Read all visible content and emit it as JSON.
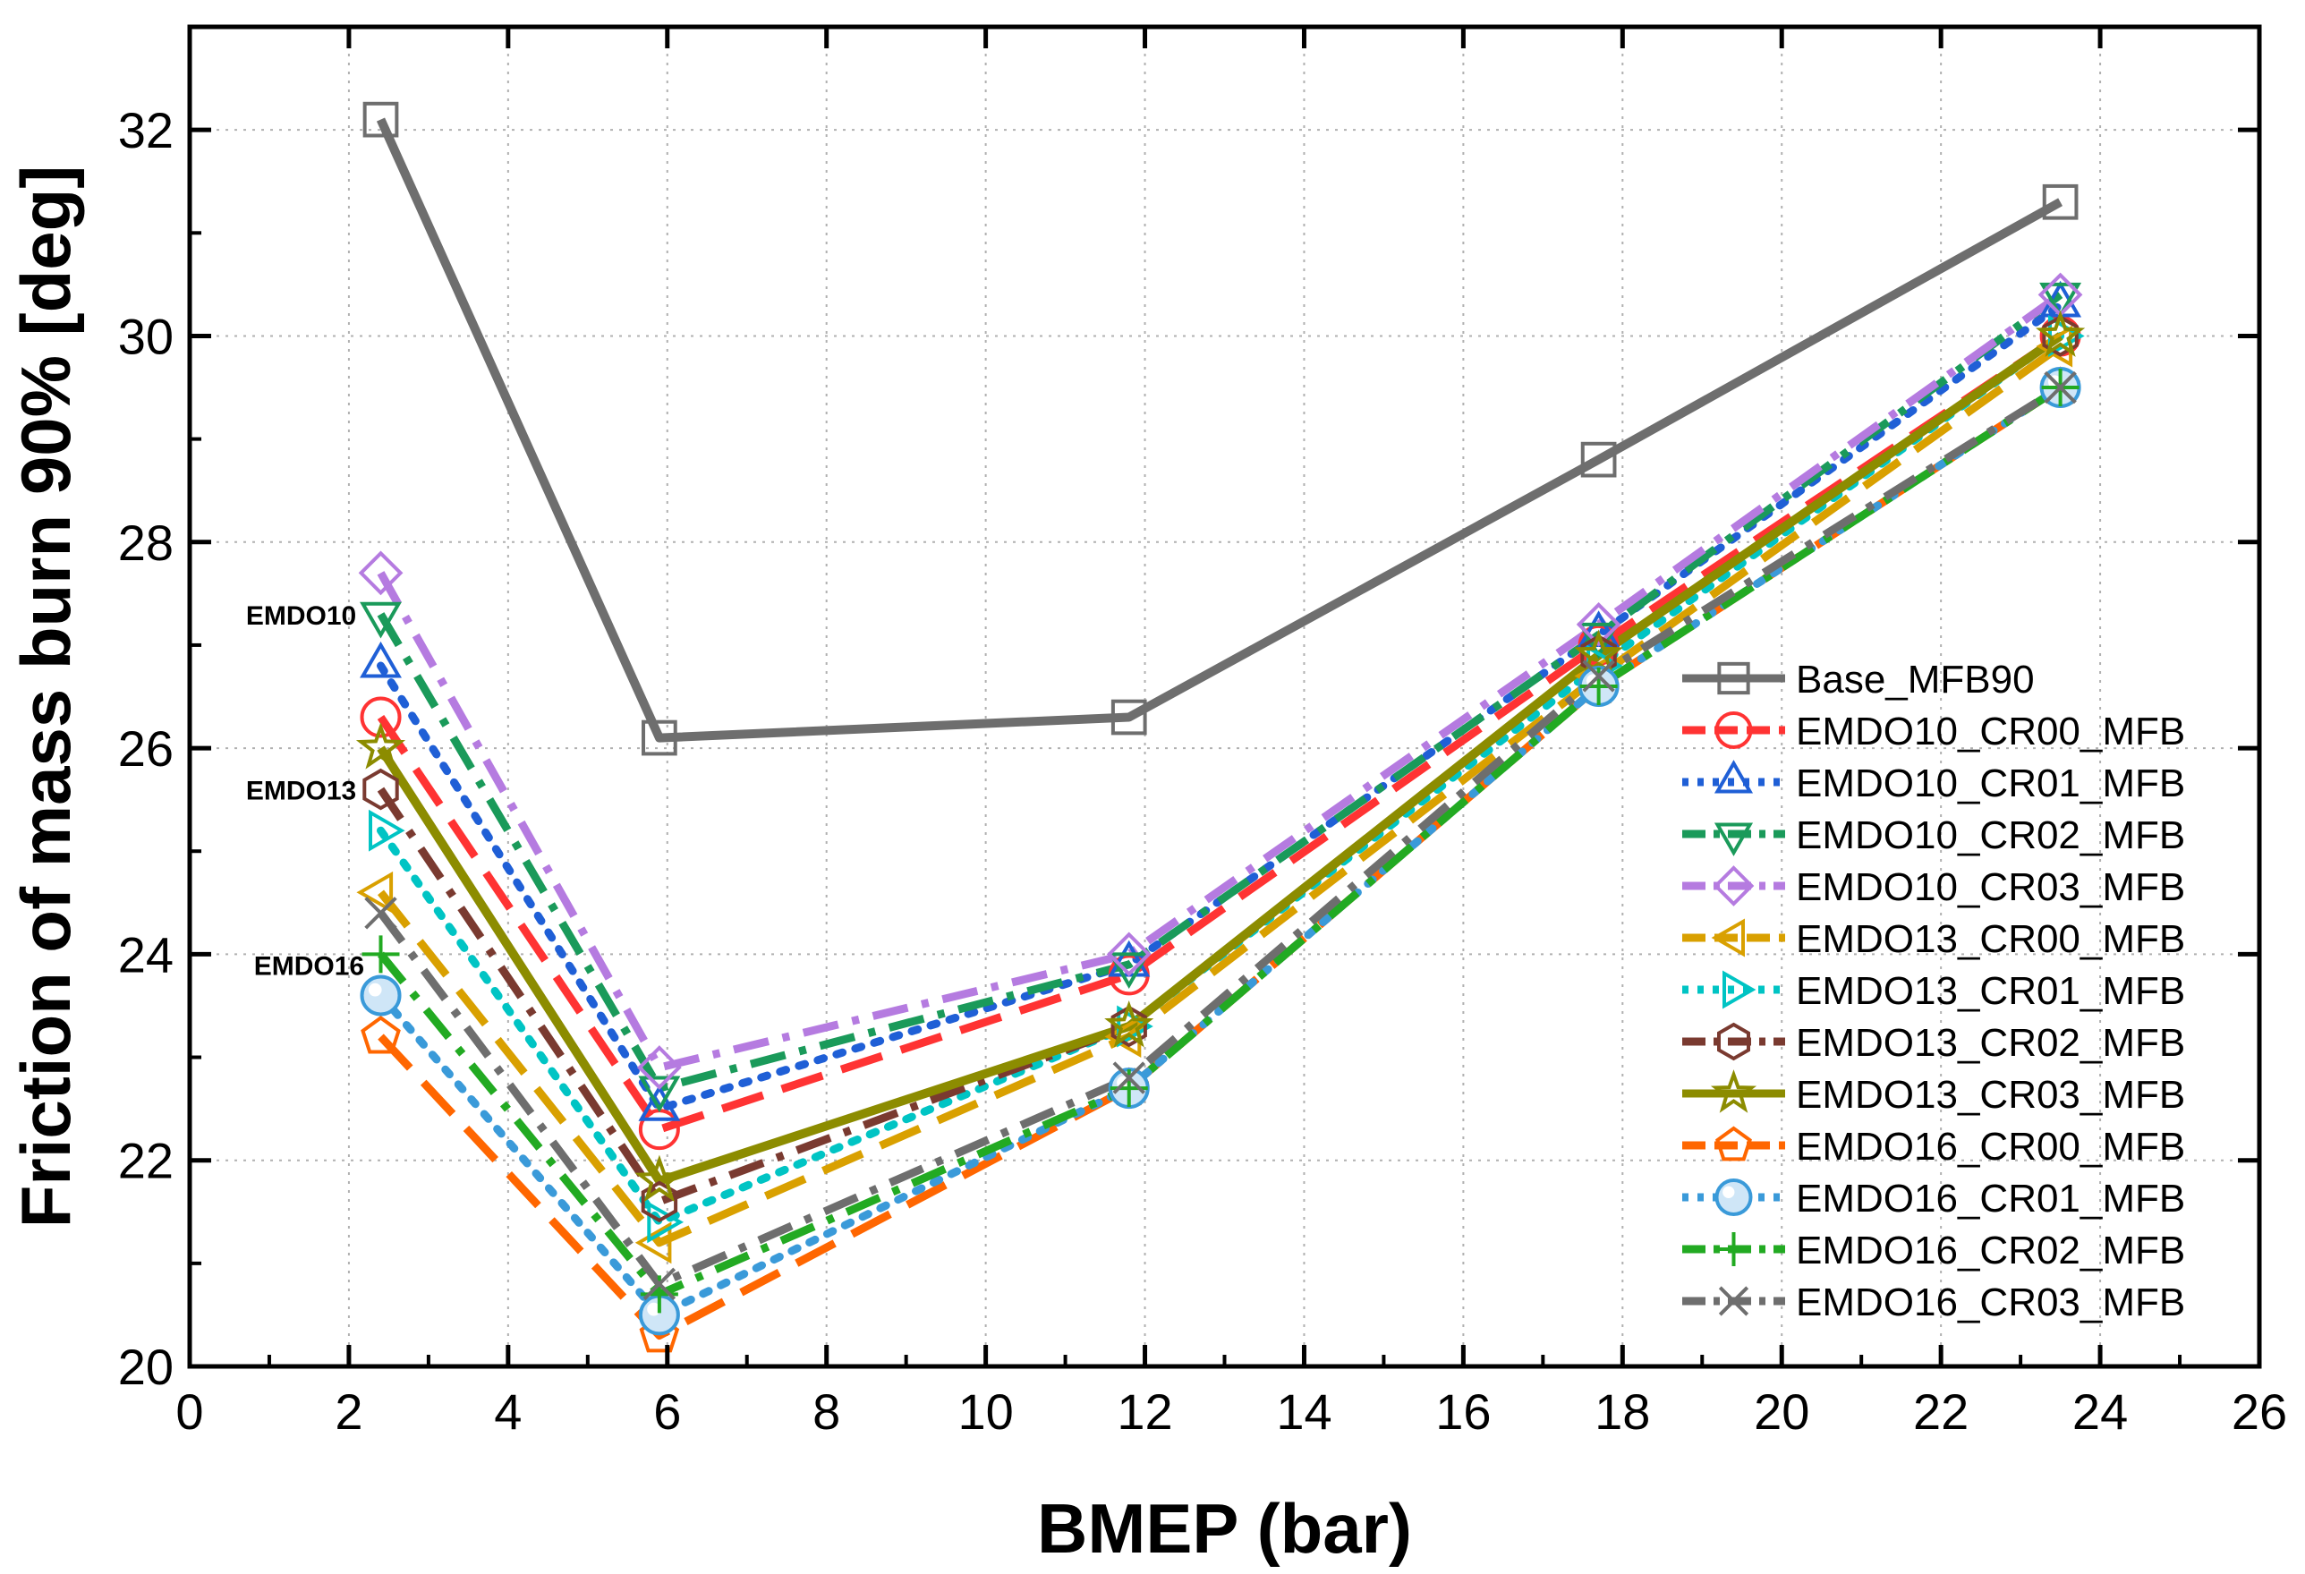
{
  "chart_data": {
    "type": "line",
    "xlabel": "BMEP (bar)",
    "ylabel": "Friction of mass burn 90% [deg]",
    "xlim": [
      0,
      26
    ],
    "ylim": [
      20,
      33
    ],
    "xticks": [
      0,
      2,
      4,
      6,
      8,
      10,
      12,
      14,
      16,
      18,
      20,
      22,
      24,
      26
    ],
    "yticks": [
      20,
      22,
      24,
      26,
      28,
      30,
      32
    ],
    "grid": true,
    "legend_position": "right",
    "x": [
      2.4,
      5.9,
      11.8,
      17.7,
      23.5
    ],
    "series": [
      {
        "name": "Base_MFB90",
        "values": [
          32.1,
          26.1,
          26.3,
          28.8,
          31.3
        ],
        "color": "#6e6e6e",
        "marker": "square",
        "dash": "solid"
      },
      {
        "name": "EMDO10_CR00_MFB",
        "values": [
          26.3,
          22.3,
          23.8,
          27.0,
          30.0
        ],
        "color": "#ff3333",
        "marker": "circle",
        "dash": "dash"
      },
      {
        "name": "EMDO10_CR01_MFB",
        "values": [
          26.8,
          22.5,
          23.9,
          27.1,
          30.3
        ],
        "color": "#1f5fd6",
        "marker": "triangle-up",
        "dash": "dot"
      },
      {
        "name": "EMDO10_CR02_MFB",
        "values": [
          27.3,
          22.7,
          23.9,
          27.1,
          30.4
        ],
        "color": "#1a9a5a",
        "marker": "triangle-down",
        "dash": "dashdot"
      },
      {
        "name": "EMDO10_CR03_MFB",
        "values": [
          27.7,
          22.9,
          24.0,
          27.2,
          30.4
        ],
        "color": "#b57be0",
        "marker": "diamond",
        "dash": "dashdot"
      },
      {
        "name": "EMDO13_CR00_MFB",
        "values": [
          24.6,
          21.2,
          23.2,
          26.7,
          29.9
        ],
        "color": "#d9a000",
        "marker": "triangle-left",
        "dash": "dash"
      },
      {
        "name": "EMDO13_CR01_MFB",
        "values": [
          25.2,
          21.4,
          23.3,
          26.8,
          30.0
        ],
        "color": "#00c4c4",
        "marker": "triangle-right",
        "dash": "dot"
      },
      {
        "name": "EMDO13_CR02_MFB",
        "values": [
          25.6,
          21.6,
          23.3,
          26.9,
          30.0
        ],
        "color": "#7a3a30",
        "marker": "hexagon",
        "dash": "dashdot"
      },
      {
        "name": "EMDO13_CR03_MFB",
        "values": [
          26.0,
          21.8,
          23.3,
          26.9,
          30.0
        ],
        "color": "#8c8c00",
        "marker": "star",
        "dash": "solid"
      },
      {
        "name": "EMDO16_CR00_MFB",
        "values": [
          23.2,
          20.3,
          22.7,
          26.6,
          29.5
        ],
        "color": "#ff6600",
        "marker": "pentagon",
        "dash": "dash"
      },
      {
        "name": "EMDO16_CR01_MFB",
        "values": [
          23.6,
          20.5,
          22.7,
          26.6,
          29.5
        ],
        "color": "#3a9ad9",
        "marker": "sphere",
        "dash": "dot"
      },
      {
        "name": "EMDO16_CR02_MFB",
        "values": [
          24.0,
          20.7,
          22.7,
          26.6,
          29.5
        ],
        "color": "#22aa22",
        "marker": "plus",
        "dash": "dashdot"
      },
      {
        "name": "EMDO16_CR03_MFB",
        "values": [
          24.4,
          20.8,
          22.8,
          26.7,
          29.5
        ],
        "color": "#6e6e6e",
        "marker": "x",
        "dash": "dashdot"
      }
    ],
    "annotations": [
      {
        "text": "EMDO10",
        "x": 1.4,
        "y": 27.2
      },
      {
        "text": "EMDO13",
        "x": 1.4,
        "y": 25.5
      },
      {
        "text": "EMDO16",
        "x": 1.5,
        "y": 23.8
      }
    ]
  }
}
